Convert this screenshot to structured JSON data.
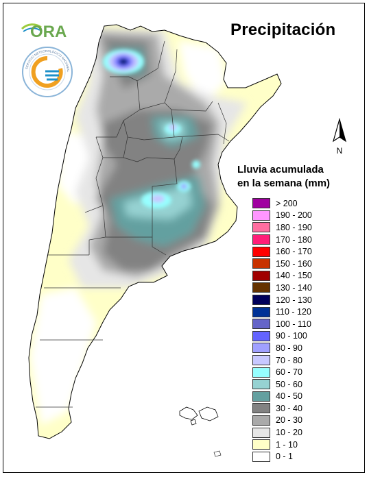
{
  "title": "Precipitación",
  "logo": {
    "ora_text": "ORA",
    "seal_text": "SERVICIO METEOROLÓGICO NACIONAL · ARGENTINA"
  },
  "north_label": "N",
  "legend": {
    "title_line1": "Lluvia acumulada",
    "title_line2": "en la semana (mm)",
    "items": [
      {
        "label": "> 200",
        "color": "#a000a0"
      },
      {
        "label": "190 - 200",
        "color": "#ff96ff"
      },
      {
        "label": "180 - 190",
        "color": "#ff6ea0"
      },
      {
        "label": "170 - 180",
        "color": "#ff1e78"
      },
      {
        "label": "160 - 170",
        "color": "#ff0000"
      },
      {
        "label": "150 - 160",
        "color": "#c83200"
      },
      {
        "label": "140 - 150",
        "color": "#a00000"
      },
      {
        "label": "130 - 140",
        "color": "#643200"
      },
      {
        "label": "120 - 130",
        "color": "#00005a"
      },
      {
        "label": "110 - 120",
        "color": "#003296"
      },
      {
        "label": "100 - 110",
        "color": "#6464c8"
      },
      {
        "label": "90 - 100",
        "color": "#6464ff"
      },
      {
        "label": "80 - 90",
        "color": "#a0a0ff"
      },
      {
        "label": "70 - 80",
        "color": "#c8c8ff"
      },
      {
        "label": "60 - 70",
        "color": "#96ffff"
      },
      {
        "label": "50 - 60",
        "color": "#96d2d2"
      },
      {
        "label": "40 - 50",
        "color": "#64a0a0"
      },
      {
        "label": "30 - 40",
        "color": "#828282"
      },
      {
        "label": "20 - 30",
        "color": "#aaaaaa"
      },
      {
        "label": "10 - 20",
        "color": "#e6e6e6"
      },
      {
        "label": "1 - 10",
        "color": "#ffffc8"
      },
      {
        "label": "0 - 1",
        "color": "#ffffff"
      }
    ]
  }
}
